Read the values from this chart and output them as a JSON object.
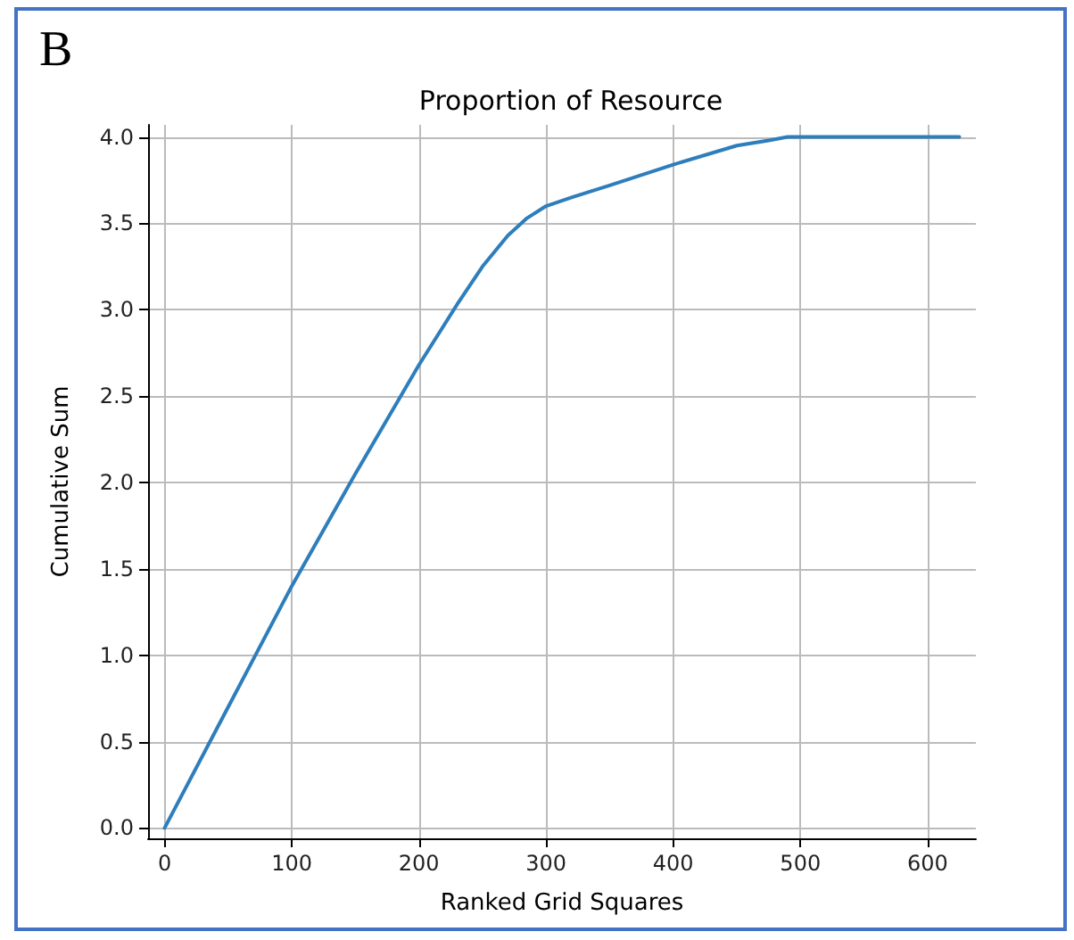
{
  "chart_data": {
    "type": "line",
    "title": "Proportion of Resource",
    "xlabel": "Ranked Grid Squares",
    "ylabel": "Cumulative Sum",
    "annotations": [
      "B"
    ],
    "x": [
      0,
      50,
      100,
      150,
      200,
      230,
      250,
      270,
      285,
      300,
      320,
      350,
      400,
      450,
      475,
      490,
      625
    ],
    "series": [
      {
        "color": "#2e7ebc",
        "values": [
          0,
          0.7,
          1.4,
          2.05,
          2.68,
          3.03,
          3.25,
          3.43,
          3.53,
          3.6,
          3.65,
          3.72,
          3.84,
          3.95,
          3.98,
          4.0,
          4.0
        ]
      }
    ],
    "xlim": [
      -13,
      638
    ],
    "ylim": [
      -0.06,
      4.07
    ],
    "xticks": [
      0,
      100,
      200,
      300,
      400,
      500,
      600
    ],
    "yticks": [
      {
        "value": 0,
        "label": "0.0"
      },
      0.5,
      {
        "value": 1,
        "label": "1.0"
      },
      1.5,
      {
        "value": 2,
        "label": "2.0"
      },
      2.5,
      {
        "value": 3,
        "label": "3.0"
      },
      3.5,
      {
        "value": 4,
        "label": "4.0"
      }
    ],
    "grid": true,
    "marker": "none",
    "line_style": "solid"
  }
}
